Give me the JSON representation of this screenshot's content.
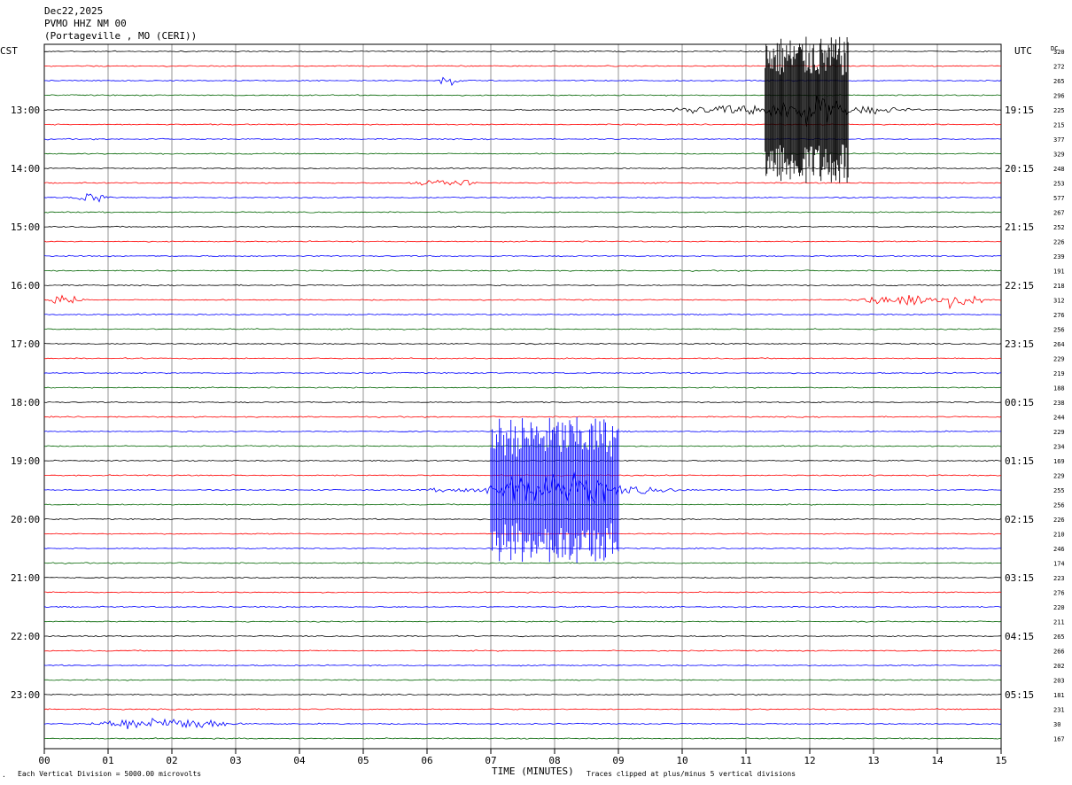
{
  "header": {
    "date": "Dec22,2025",
    "station": "PVMO HHZ NM 00",
    "location": "(Portageville , MO (CERI))"
  },
  "left_axis_title": "CST",
  "right_axis_title": "UTC",
  "dc_title": "DC",
  "footer": {
    "time_label": "TIME (MINUTES)",
    "scale_note": "Each Vertical Division = 5000.00 microvolts",
    "clip_note": "Traces clipped at plus/minus 5 vertical divisions",
    "corner_mark": "."
  },
  "colors": {
    "black": "#000000",
    "red": "#ff0000",
    "blue": "#0000ff",
    "green": "#006400",
    "grid": "#000000"
  },
  "chart_data": {
    "type": "line",
    "x_axis": {
      "min": 0,
      "max": 15,
      "tick_labels": [
        "00",
        "01",
        "02",
        "03",
        "04",
        "05",
        "06",
        "07",
        "08",
        "09",
        "10",
        "11",
        "12",
        "13",
        "14",
        "15"
      ]
    },
    "trace_colors": [
      "black",
      "red",
      "blue",
      "green"
    ],
    "trace_count": 48,
    "minutes_per_trace": 15,
    "left_hour_labels": [
      "13:00",
      "14:00",
      "15:00",
      "16:00",
      "17:00",
      "18:00",
      "19:00",
      "20:00",
      "21:00",
      "22:00",
      "23:00"
    ],
    "right_hour_labels": [
      "19:15",
      "20:15",
      "21:15",
      "22:15",
      "23:15",
      "00:15",
      "01:15",
      "02:15",
      "03:15",
      "04:15",
      "05:15"
    ],
    "dc_values": [
      "320",
      "272",
      "265",
      "296",
      "225",
      "215",
      "377",
      "329",
      "248",
      "253",
      "577",
      "267",
      "252",
      "226",
      "239",
      "191",
      "218",
      "312",
      "276",
      "256",
      "264",
      "229",
      "219",
      "188",
      "238",
      "244",
      "229",
      "234",
      "169",
      "229",
      "255",
      "256",
      "226",
      "210",
      "246",
      "174",
      "223",
      "276",
      "220",
      "211",
      "265",
      "266",
      "202",
      "203",
      "181",
      "231",
      "30",
      "167"
    ],
    "events": [
      {
        "trace": 2,
        "start": 6.15,
        "end": 6.55,
        "amplitude": 1.5
      },
      {
        "trace": 4,
        "start": 9.3,
        "end": 14.0,
        "amplitude": 1.5,
        "core_start": 11.3,
        "core_end": 12.6,
        "core_amplitude": 5
      },
      {
        "trace": 9,
        "start": 5.6,
        "end": 6.9,
        "amplitude": 1.2
      },
      {
        "trace": 10,
        "start": 0.4,
        "end": 1.1,
        "amplitude": 1.5
      },
      {
        "trace": 17,
        "start": 0,
        "end": 0.7,
        "amplitude": 1.5
      },
      {
        "trace": 17,
        "start": 12.6,
        "end": 15,
        "amplitude": 2.0
      },
      {
        "trace": 30,
        "start": 5.6,
        "end": 10.5,
        "amplitude": 1.3,
        "core_start": 7.0,
        "core_end": 9.0,
        "core_amplitude": 5
      },
      {
        "trace": 46,
        "start": 0.6,
        "end": 3.1,
        "amplitude": 2.0
      }
    ]
  }
}
